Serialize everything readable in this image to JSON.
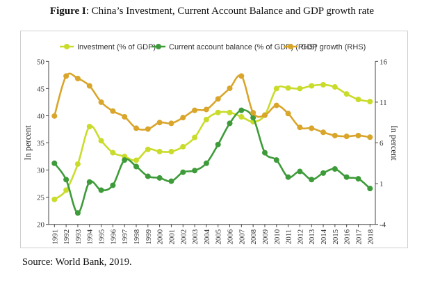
{
  "title_bold": "Figure I",
  "title_rest": ": China’s Investment, Current Account Balance and GDP growth rate",
  "source": "Source: World Bank, 2019.",
  "chart_data": {
    "type": "line",
    "x": [
      1991,
      1992,
      1993,
      1994,
      1995,
      1996,
      1997,
      1998,
      1999,
      2000,
      2001,
      2002,
      2003,
      2004,
      2005,
      2006,
      2007,
      2008,
      2009,
      2010,
      2011,
      2012,
      2013,
      2014,
      2015,
      2016,
      2017,
      2018
    ],
    "ylabel": "In percent",
    "ylabel_right": "In percent",
    "ylim": [
      20,
      50
    ],
    "ylim_right": [
      -4,
      16
    ],
    "yticks": [
      20,
      25,
      30,
      35,
      40,
      45,
      50
    ],
    "yticks_right": [
      -4,
      1,
      6,
      11,
      16
    ],
    "legend_position": "top",
    "grid": false,
    "series": [
      {
        "name": "Investment (% of GDP)",
        "axis": "left",
        "color": "#c9dc2b",
        "values": [
          24.6,
          26.3,
          31.1,
          38.0,
          35.4,
          33.2,
          32.5,
          31.8,
          33.8,
          33.4,
          33.4,
          34.3,
          36.0,
          39.3,
          40.6,
          40.6,
          39.8,
          38.9,
          40.1,
          45.0,
          45.1,
          45.0,
          45.5,
          45.7,
          45.3,
          44.0,
          43.0,
          42.6
        ]
      },
      {
        "name": "Current account balance (% of GDP) (RHS)",
        "axis": "right",
        "color": "#3e9b3a",
        "values": [
          3.5,
          1.5,
          -2.6,
          1.2,
          0.2,
          0.8,
          3.9,
          3.1,
          1.9,
          1.7,
          1.3,
          2.4,
          2.6,
          3.5,
          5.8,
          8.4,
          10.0,
          9.1,
          4.8,
          3.9,
          1.8,
          2.5,
          1.5,
          2.3,
          2.8,
          1.8,
          1.6,
          0.4
        ]
      },
      {
        "name": "GDP growth (RHS)",
        "axis": "right",
        "color": "#d9a52b",
        "values": [
          9.3,
          14.2,
          13.9,
          13.0,
          11.0,
          9.9,
          9.2,
          7.8,
          7.7,
          8.5,
          8.4,
          9.1,
          10.0,
          10.1,
          11.4,
          12.7,
          14.2,
          9.7,
          9.4,
          10.6,
          9.6,
          7.9,
          7.8,
          7.3,
          6.9,
          6.8,
          6.9,
          6.7
        ]
      }
    ]
  }
}
